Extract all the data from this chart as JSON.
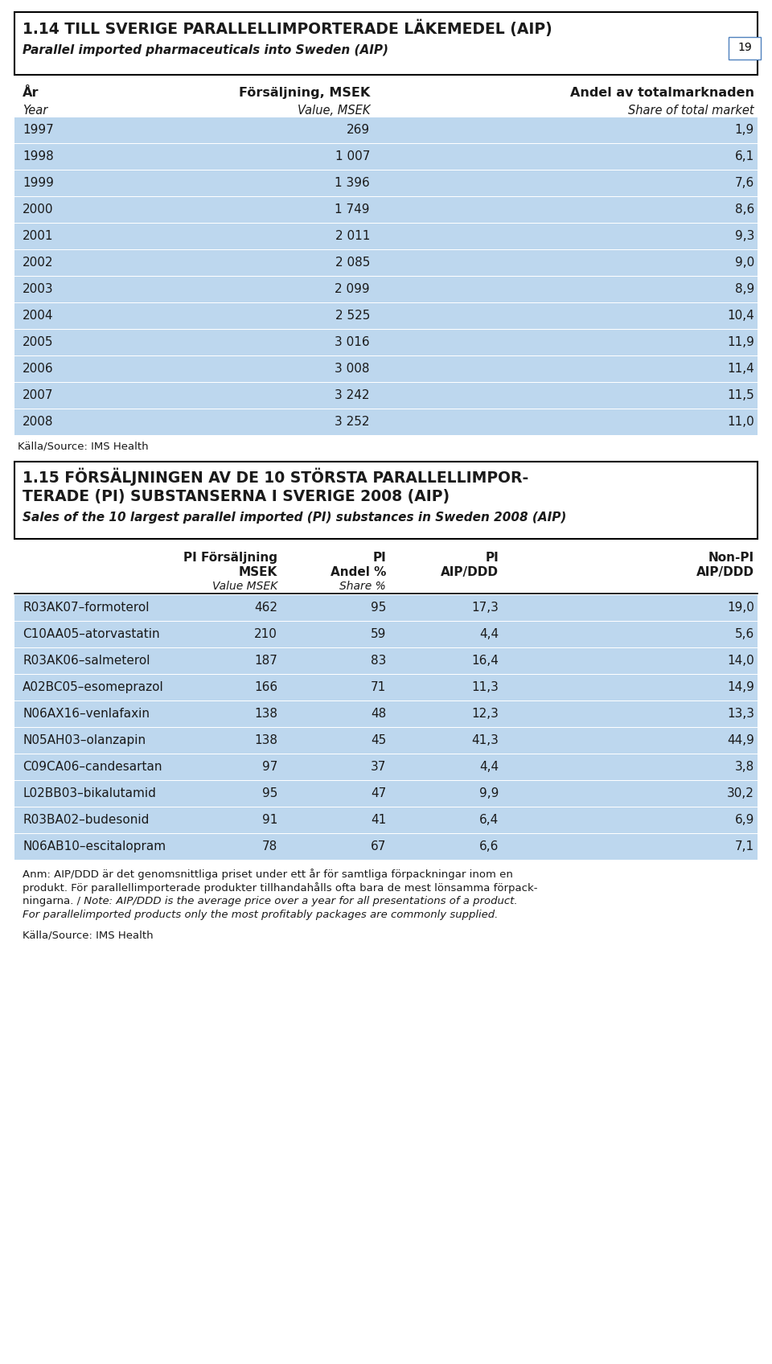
{
  "page_bg": "#ffffff",
  "table1_title_bold": "1.14 TILL SVERIGE PARALLELLIMPORTERADE LÄKEMEDEL (AIP)",
  "table1_title_italic": "Parallel imported pharmaceuticals into Sweden (AIP)",
  "table1_header_bold": [
    "År",
    "Försäljning, MSEK",
    "Andel av totalmarknaden"
  ],
  "table1_header_italic": [
    "Year",
    "Value, MSEK",
    "Share of total market"
  ],
  "table1_rows": [
    [
      "1997",
      "269",
      "1,9"
    ],
    [
      "1998",
      "1 007",
      "6,1"
    ],
    [
      "1999",
      "1 396",
      "7,6"
    ],
    [
      "2000",
      "1 749",
      "8,6"
    ],
    [
      "2001",
      "2 011",
      "9,3"
    ],
    [
      "2002",
      "2 085",
      "9,0"
    ],
    [
      "2003",
      "2 099",
      "8,9"
    ],
    [
      "2004",
      "2 525",
      "10,4"
    ],
    [
      "2005",
      "3 016",
      "11,9"
    ],
    [
      "2006",
      "3 008",
      "11,4"
    ],
    [
      "2007",
      "3 242",
      "11,5"
    ],
    [
      "2008",
      "3 252",
      "11,0"
    ]
  ],
  "source1": "Källa/Source: IMS Health",
  "table2_title_line1": "1.15 FÖRSÄLJNINGEN AV DE 10 STÖRSTA PARALLELLIMPOR-",
  "table2_title_line2": "TERADE (PI) SUBSTANSERNA I SVERIGE 2008 (AIP)",
  "table2_title_italic": "Sales of the 10 largest parallel imported (PI) substances in Sweden 2008 (AIP)",
  "table2_col_headers_line1_bold": [
    "PI Försäljning",
    "PI",
    "PI",
    "Non-PI"
  ],
  "table2_col_headers_line2_bold": [
    "MSEK",
    "Andel %",
    "AIP/DDD",
    "AIP/DDD"
  ],
  "table2_col_headers_italic": [
    "Value MSEK",
    "Share %",
    "",
    ""
  ],
  "table2_rows": [
    [
      "R03AK07–formoterol",
      "462",
      "95",
      "17,3",
      "19,0"
    ],
    [
      "C10AA05–atorvastatin",
      "210",
      "59",
      "4,4",
      "5,6"
    ],
    [
      "R03AK06–salmeterol",
      "187",
      "83",
      "16,4",
      "14,0"
    ],
    [
      "A02BC05–esomeprazol",
      "166",
      "71",
      "11,3",
      "14,9"
    ],
    [
      "N06AX16–venlafaxin",
      "138",
      "48",
      "12,3",
      "13,3"
    ],
    [
      "N05AH03–olanzapin",
      "138",
      "45",
      "41,3",
      "44,9"
    ],
    [
      "C09CA06–candesartan",
      "97",
      "37",
      "4,4",
      "3,8"
    ],
    [
      "L02BB03–bikalutamid",
      "95",
      "47",
      "9,9",
      "30,2"
    ],
    [
      "R03BA02–budesonid",
      "91",
      "41",
      "6,4",
      "6,9"
    ],
    [
      "N06AB10–escitalopram",
      "78",
      "67",
      "6,6",
      "7,1"
    ]
  ],
  "note_line1": "Anm: AIP/DDD är det genomsnittliga priset under ett år för samtliga förpackningar inom en",
  "note_line2": "produkt. För parallellimporterade produkter tillhandahålls ofta bara de mest lönsamma förpack-",
  "note_line3_sv": "ningarna. /",
  "note_line3_en": " Note: AIP/DDD is the average price over a year for all presentations of a product.",
  "note_line4": "For parallelimported products only the most profitably packages are commonly supplied.",
  "source2": "Källa/Source: IMS Health",
  "page_number": "19",
  "light_blue": "#bdd7ee",
  "border_color": "#000000",
  "text_color": "#1a1a1a"
}
